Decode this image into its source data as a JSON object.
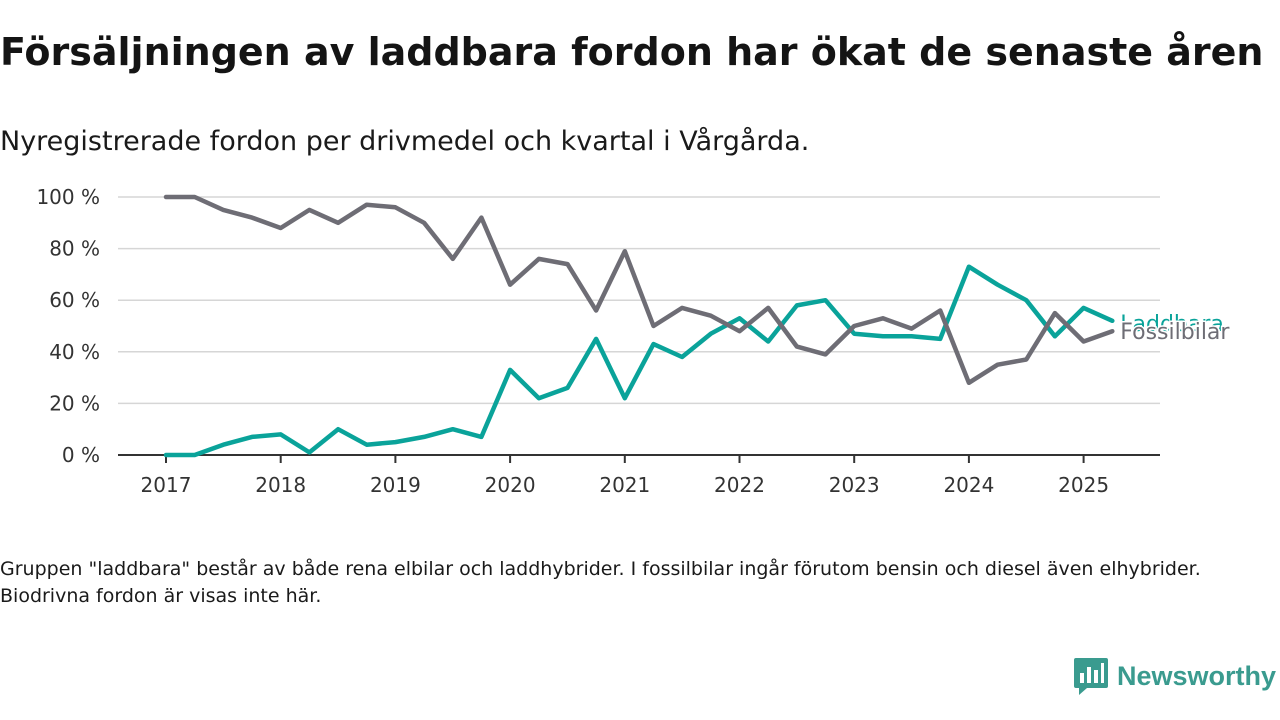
{
  "title": "Försäljningen av laddbara fordon har ökat de senaste åren",
  "subtitle": "Nyregistrerade fordon per drivmedel och kvartal i Vårgårda.",
  "note": "Gruppen \"laddbara\" består av både rena elbilar och laddhybrider. I fossilbilar ingår förutom bensin och diesel även elhybrider. Biodrivna fordon är visas inte här.",
  "brand": {
    "name": "Newsworthy",
    "icon": "newsworthy-logo-icon"
  },
  "colors": {
    "fossil": "#6e6d75",
    "laddbara": "#0aa39a",
    "grid": "#d6d6d6",
    "axis": "#333333"
  },
  "chart_data": {
    "type": "line",
    "ylim": [
      0,
      100
    ],
    "y_ticks": [
      0,
      20,
      40,
      60,
      80,
      100
    ],
    "y_tick_labels": [
      "0 %",
      "20 %",
      "40 %",
      "60 %",
      "80 %",
      "100 %"
    ],
    "x_ticks": [
      2017,
      2018,
      2019,
      2020,
      2021,
      2022,
      2023,
      2024,
      2025
    ],
    "x_tick_labels": [
      "2017",
      "2018",
      "2019",
      "2020",
      "2021",
      "2022",
      "2023",
      "2024",
      "2025"
    ],
    "x": [
      "2017-Q1",
      "2017-Q2",
      "2017-Q3",
      "2017-Q4",
      "2018-Q1",
      "2018-Q2",
      "2018-Q3",
      "2018-Q4",
      "2019-Q1",
      "2019-Q2",
      "2019-Q3",
      "2019-Q4",
      "2020-Q1",
      "2020-Q2",
      "2020-Q3",
      "2020-Q4",
      "2021-Q1",
      "2021-Q2",
      "2021-Q3",
      "2021-Q4",
      "2022-Q1",
      "2022-Q2",
      "2022-Q3",
      "2022-Q4",
      "2023-Q1",
      "2023-Q2",
      "2023-Q3",
      "2023-Q4",
      "2024-Q1",
      "2024-Q2",
      "2024-Q3",
      "2024-Q4",
      "2025-Q1",
      "2025-Q2"
    ],
    "series": [
      {
        "name": "Fossilbilar",
        "values": [
          100,
          100,
          95,
          92,
          88,
          95,
          90,
          97,
          96,
          90,
          76,
          92,
          66,
          76,
          74,
          56,
          79,
          50,
          57,
          54,
          48,
          57,
          42,
          39,
          50,
          53,
          49,
          56,
          28,
          35,
          37,
          55,
          44,
          48
        ]
      },
      {
        "name": "Laddbara",
        "values": [
          0,
          0,
          4,
          7,
          8,
          1,
          10,
          4,
          5,
          7,
          10,
          7,
          33,
          22,
          26,
          45,
          22,
          43,
          38,
          47,
          53,
          44,
          58,
          60,
          47,
          46,
          46,
          45,
          73,
          66,
          60,
          46,
          57,
          52
        ]
      }
    ]
  }
}
